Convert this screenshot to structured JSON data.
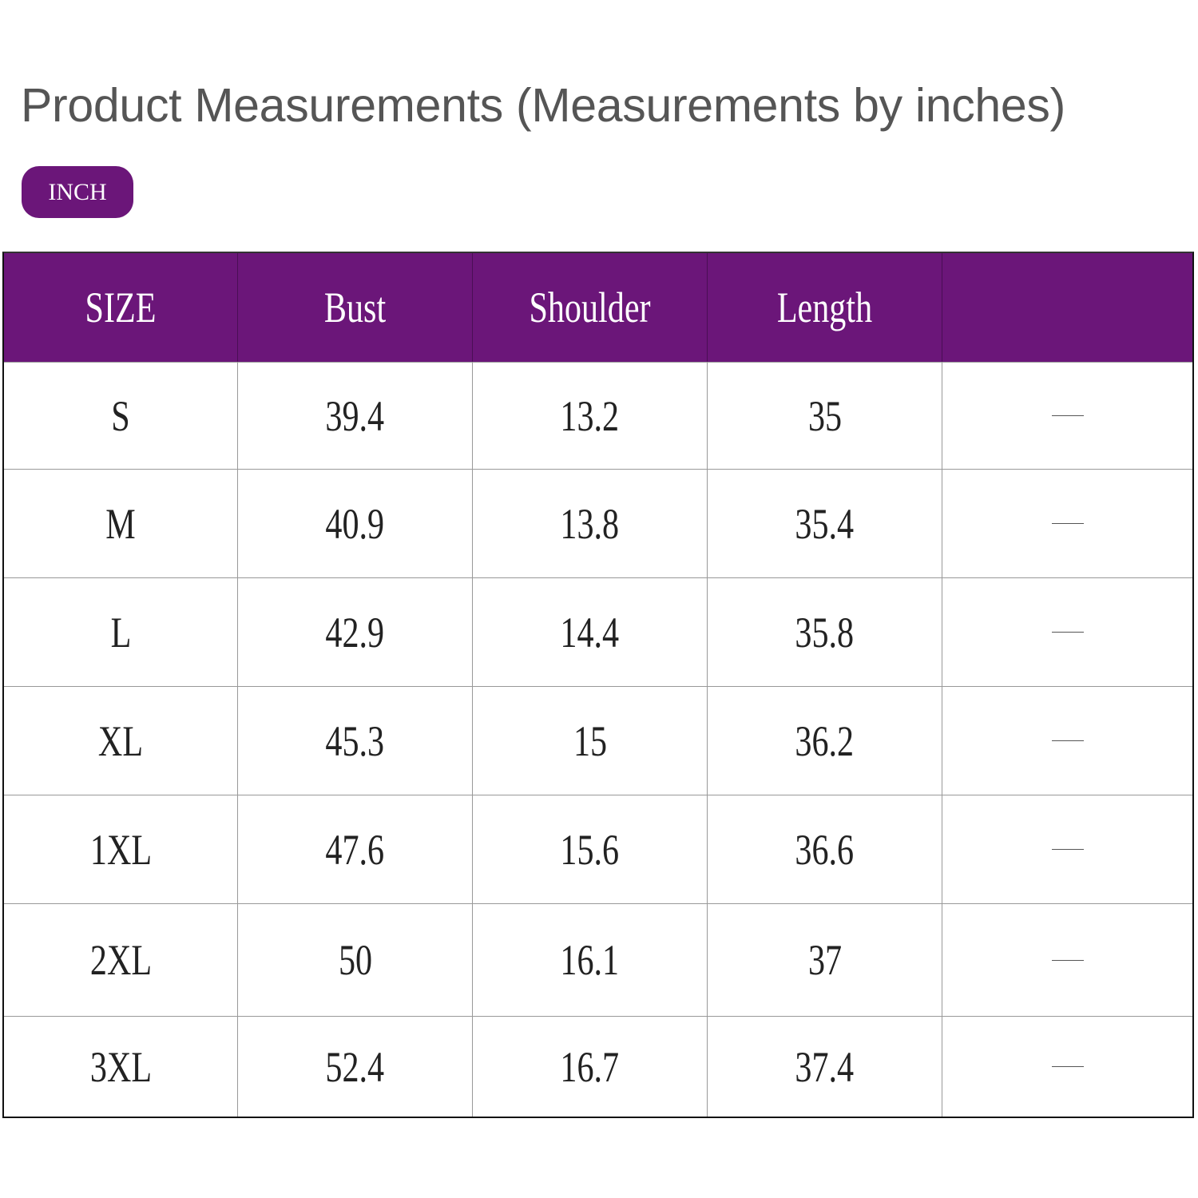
{
  "title": "Product Measurements (Measurements by inches)",
  "unit_badge": "INCH",
  "accent_color": "#6b1679",
  "table": {
    "headers": [
      "SIZE",
      "Bust",
      "Shoulder",
      "Length",
      ""
    ],
    "rows": [
      [
        "S",
        "39.4",
        "13.2",
        "35",
        "—"
      ],
      [
        "M",
        "40.9",
        "13.8",
        "35.4",
        "—"
      ],
      [
        "L",
        "42.9",
        "14.4",
        "35.8",
        "—"
      ],
      [
        "XL",
        "45.3",
        "15",
        "36.2",
        "—"
      ],
      [
        "1XL",
        "47.6",
        "15.6",
        "36.6",
        "—"
      ],
      [
        "2XL",
        "50",
        "16.1",
        "37",
        "—"
      ],
      [
        "3XL",
        "52.4",
        "16.7",
        "37.4",
        "—"
      ]
    ]
  }
}
